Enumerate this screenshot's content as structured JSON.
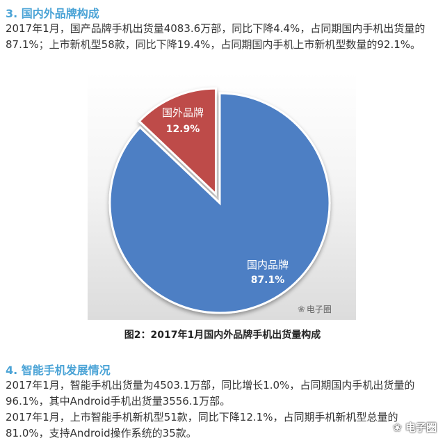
{
  "section3": {
    "heading": "3. 国内外品牌构成",
    "paragraph": "2017年1月，国产品牌手机出货量4083.6万部，同比下降4.4%，占同期国内手机出货量的87.1%；上市新机型58款，同比下降19.4%，占同期国内手机上市新机型数量的92.1%。"
  },
  "figure": {
    "caption": "图2：2017年1月国内外品牌手机出货量构成",
    "watermark": "电子圈",
    "colors": {
      "domestic": "#4e7fc4",
      "foreign": "#be4b48"
    }
  },
  "chart_data": {
    "type": "pie",
    "title": "",
    "slices": [
      {
        "label": "国外品牌",
        "value": 12.9,
        "display": "12.9%",
        "color": "#be4b48"
      },
      {
        "label": "国内品牌",
        "value": 87.1,
        "display": "87.1%",
        "color": "#4e7fc4"
      }
    ],
    "legend": "none"
  },
  "section4": {
    "heading": "4. 智能手机发展情况",
    "paragraph1": "2017年1月，智能手机出货量为4503.1万部，同比增长1.0%，占同期国内手机出货量的96.1%，其中Android手机出货量3556.1万部。",
    "paragraph2": "2017年1月，上市智能手机新机型51款，同比下降12.1%，占同期手机新机型总量的81.0%，支持Android操作系统的35款。"
  },
  "bottom_watermark": "电子圈"
}
